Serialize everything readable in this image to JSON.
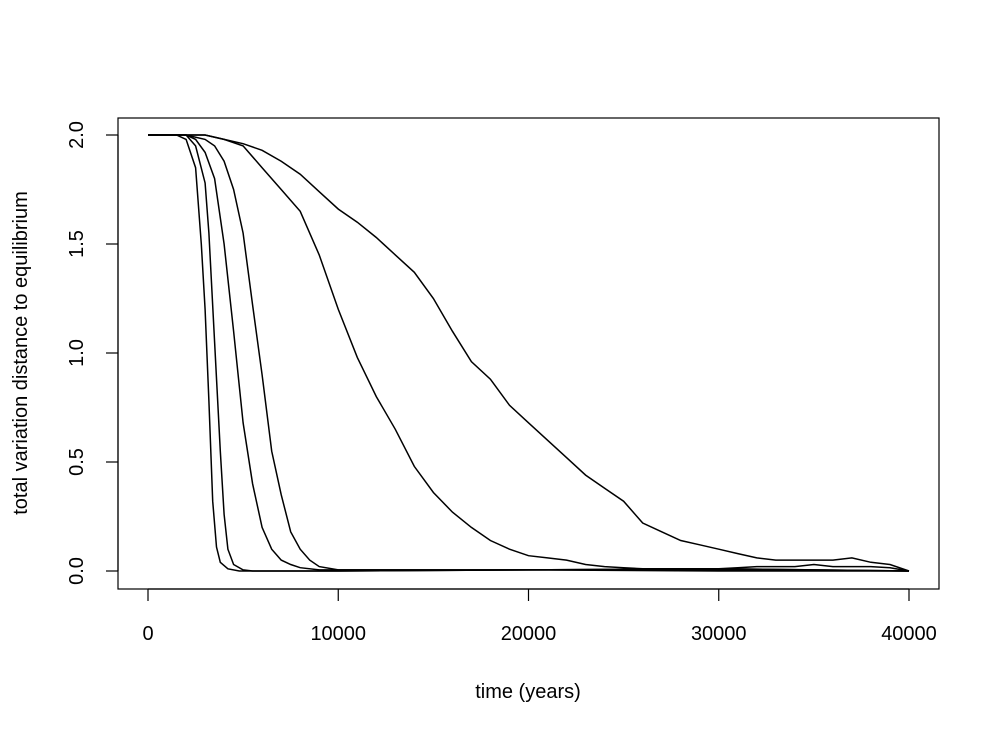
{
  "chart_data": {
    "type": "line",
    "title": "",
    "xlabel": "time (years)",
    "ylabel": "total variation distance to equilibrium",
    "xlim": [
      0,
      40000
    ],
    "ylim": [
      0,
      2
    ],
    "grid": false,
    "legend": "none",
    "x_ticks": [
      "0",
      "10000",
      "20000",
      "30000",
      "40000"
    ],
    "y_ticks": [
      "0.0",
      "0.5",
      "1.0",
      "1.5",
      "2.0"
    ],
    "line_color": "#000000",
    "series": [
      {
        "x": [
          0,
          1500,
          2000,
          2500,
          2800,
          3000,
          3200,
          3400,
          3600,
          3800,
          4200,
          4800,
          5500,
          10000,
          20000,
          30000,
          40000
        ],
        "y": [
          2.0,
          2.0,
          1.98,
          1.85,
          1.5,
          1.2,
          0.78,
          0.32,
          0.11,
          0.04,
          0.01,
          0.0,
          0.0,
          0.0,
          0.005,
          0.005,
          0.0
        ]
      },
      {
        "x": [
          0,
          1500,
          2000,
          2500,
          3000,
          3200,
          3500,
          3800,
          4000,
          4200,
          4500,
          5000,
          5500,
          10000,
          20000,
          30000,
          40000
        ],
        "y": [
          2.0,
          2.0,
          2.0,
          1.95,
          1.78,
          1.55,
          1.05,
          0.55,
          0.26,
          0.1,
          0.03,
          0.005,
          0.0,
          0.0,
          0.005,
          0.0,
          0.0
        ]
      },
      {
        "x": [
          0,
          2000,
          2500,
          3000,
          3500,
          4000,
          4500,
          5000,
          5500,
          6000,
          6500,
          7000,
          7500,
          8000,
          9000,
          10000,
          20000,
          30000,
          40000
        ],
        "y": [
          2.0,
          2.0,
          1.98,
          1.92,
          1.8,
          1.5,
          1.1,
          0.68,
          0.4,
          0.2,
          0.1,
          0.05,
          0.03,
          0.015,
          0.005,
          0.005,
          0.005,
          0.01,
          0.0
        ]
      },
      {
        "x": [
          0,
          2000,
          3000,
          3500,
          4000,
          4500,
          5000,
          5500,
          6000,
          6500,
          7000,
          7500,
          8000,
          8500,
          9000,
          10000,
          20000,
          30000,
          40000
        ],
        "y": [
          2.0,
          2.0,
          1.98,
          1.95,
          1.88,
          1.75,
          1.55,
          1.22,
          0.9,
          0.55,
          0.35,
          0.18,
          0.1,
          0.05,
          0.02,
          0.005,
          0.005,
          0.01,
          0.0
        ]
      },
      {
        "x": [
          0,
          2000,
          3000,
          4000,
          5000,
          6000,
          7000,
          8000,
          9000,
          10000,
          11000,
          12000,
          13000,
          14000,
          15000,
          16000,
          17000,
          18000,
          19000,
          20000,
          21000,
          22000,
          23000,
          24000,
          25000,
          26000,
          27000,
          28000,
          29000,
          30000,
          31000,
          32000,
          33000,
          34000,
          35000,
          36000,
          37000,
          38000,
          39000,
          40000
        ],
        "y": [
          2.0,
          2.0,
          2.0,
          1.98,
          1.95,
          1.85,
          1.75,
          1.65,
          1.45,
          1.2,
          0.98,
          0.8,
          0.65,
          0.48,
          0.36,
          0.27,
          0.2,
          0.14,
          0.1,
          0.07,
          0.06,
          0.05,
          0.03,
          0.02,
          0.015,
          0.01,
          0.01,
          0.01,
          0.01,
          0.01,
          0.015,
          0.02,
          0.02,
          0.02,
          0.03,
          0.02,
          0.02,
          0.02,
          0.015,
          0.0
        ]
      },
      {
        "x": [
          0,
          2000,
          3000,
          4000,
          5000,
          6000,
          7000,
          8000,
          9000,
          10000,
          11000,
          12000,
          13000,
          14000,
          15000,
          16000,
          17000,
          18000,
          19000,
          20000,
          21000,
          22000,
          23000,
          24000,
          25000,
          26000,
          27000,
          28000,
          29000,
          30000,
          31000,
          32000,
          33000,
          34000,
          35000,
          36000,
          37000,
          38000,
          39000,
          40000
        ],
        "y": [
          2.0,
          2.0,
          2.0,
          1.98,
          1.96,
          1.93,
          1.88,
          1.82,
          1.74,
          1.66,
          1.6,
          1.53,
          1.45,
          1.37,
          1.25,
          1.1,
          0.96,
          0.88,
          0.76,
          0.68,
          0.6,
          0.52,
          0.44,
          0.38,
          0.32,
          0.22,
          0.18,
          0.14,
          0.12,
          0.1,
          0.08,
          0.06,
          0.05,
          0.05,
          0.05,
          0.05,
          0.06,
          0.04,
          0.03,
          0.0
        ]
      }
    ]
  }
}
